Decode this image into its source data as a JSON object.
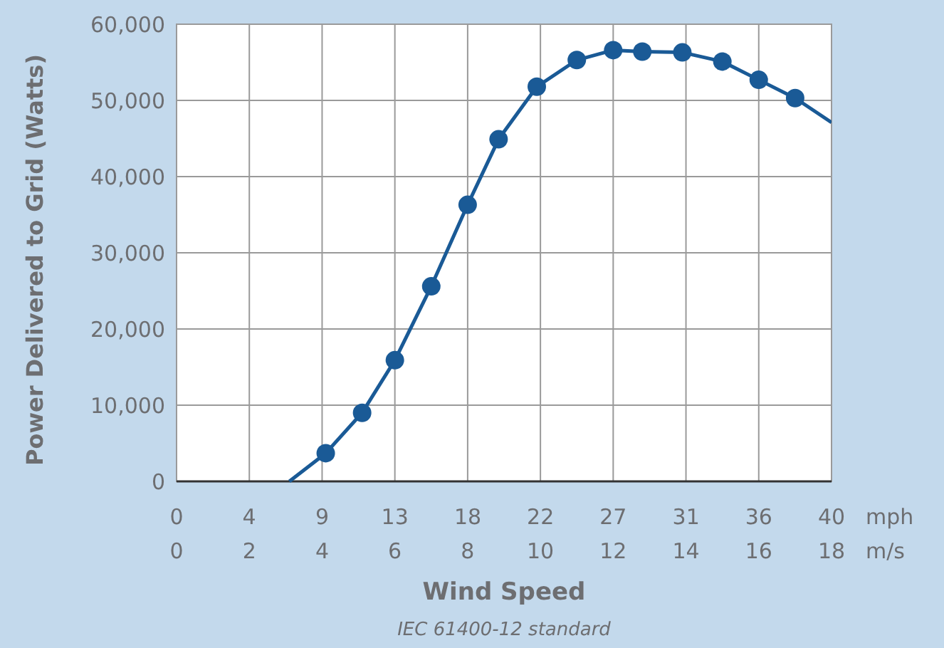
{
  "chart_data": {
    "type": "line",
    "xlabel": "Wind Speed",
    "ylabel": "Power Delivered to Grid (Watts)",
    "x2label": "mph",
    "annotations": [
      "m/s",
      "IEC 61400-12 standard"
    ],
    "xlim": [
      0,
      18
    ],
    "xticks": [
      0,
      2,
      4,
      6,
      8,
      10,
      12,
      14,
      16,
      18
    ],
    "x2lim": [
      0,
      40.26
    ],
    "x2ticks": [
      {
        "value": 0,
        "label": "0"
      },
      {
        "value": 4.47,
        "label": "4"
      },
      {
        "value": 8.95,
        "label": "9"
      },
      {
        "value": 13.42,
        "label": "13"
      },
      {
        "value": 17.9,
        "label": "18"
      },
      {
        "value": 22.37,
        "label": "22"
      },
      {
        "value": 26.84,
        "label": "27"
      },
      {
        "value": 31.32,
        "label": "31"
      },
      {
        "value": 35.79,
        "label": "36"
      },
      {
        "value": 40.26,
        "label": "40"
      }
    ],
    "ylim": [
      0,
      60000
    ],
    "yticks": [
      {
        "value": 0,
        "label": "0"
      },
      {
        "value": 10000,
        "label": "10,000"
      },
      {
        "value": 20000,
        "label": "20,000"
      },
      {
        "value": 30000,
        "label": "30,000"
      },
      {
        "value": 40000,
        "label": "40,000"
      },
      {
        "value": 50000,
        "label": "50,000"
      },
      {
        "value": 60000,
        "label": "60,000"
      }
    ],
    "grid": true,
    "series": [
      {
        "marker": "none",
        "color": "#1a5a96",
        "x": [
          3.1,
          4.1,
          5.1,
          6.0,
          7.0,
          8.0,
          8.85,
          9.9,
          11.0,
          12.0,
          12.8,
          13.9,
          15.0,
          16.0,
          17.0,
          18.0
        ],
        "values": [
          0,
          3700,
          9000,
          15900,
          25600,
          36300,
          44900,
          51800,
          55300,
          56600,
          56400,
          56300,
          55100,
          52700,
          50300,
          47100
        ]
      },
      {
        "type": "scatter",
        "marker": "circle",
        "color": "#1a5a96",
        "x": [
          4.1,
          5.1,
          6.0,
          7.0,
          8.0,
          8.85,
          9.9,
          11.0,
          12.0,
          12.8,
          13.9,
          15.0,
          16.0,
          17.0
        ],
        "values": [
          3700,
          9000,
          15900,
          25600,
          36300,
          44900,
          51800,
          55300,
          56600,
          56400,
          56300,
          55100,
          52700,
          50300
        ]
      }
    ]
  }
}
